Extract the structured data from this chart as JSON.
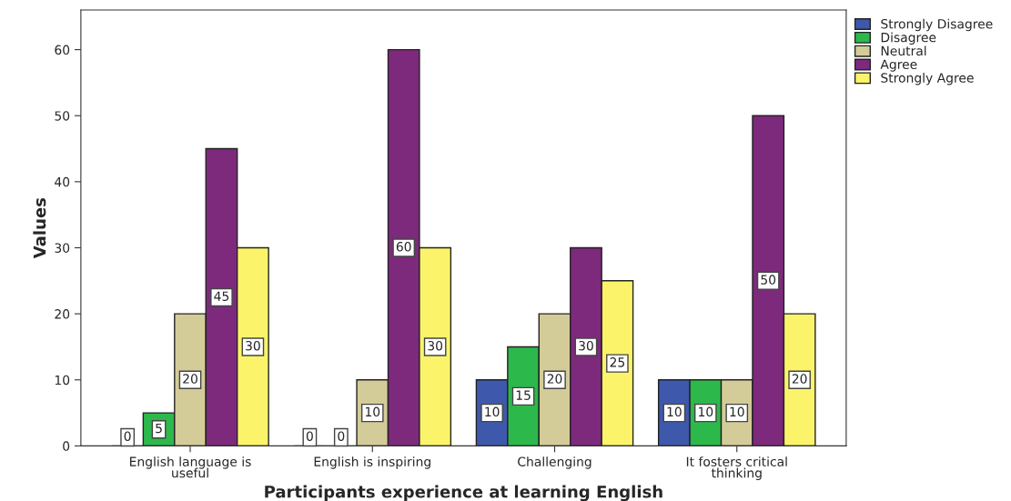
{
  "chart_data": {
    "type": "bar",
    "xlabel": "Participants experience at learning English",
    "ylabel": "Values",
    "categories": [
      "English language is useful",
      "English is inspiring",
      "Challenging",
      "It fosters critical thinking"
    ],
    "series": [
      {
        "name": "Strongly Disagree",
        "color": "#3e58ac",
        "values": [
          0,
          0,
          10,
          10
        ]
      },
      {
        "name": "Disagree",
        "color": "#2db84b",
        "values": [
          5,
          0,
          15,
          10
        ]
      },
      {
        "name": "Neutral",
        "color": "#d4cc98",
        "values": [
          20,
          10,
          20,
          10
        ]
      },
      {
        "name": "Agree",
        "color": "#7d2a7c",
        "values": [
          45,
          60,
          30,
          50
        ]
      },
      {
        "name": "Strongly Agree",
        "color": "#fbf46a",
        "values": [
          30,
          30,
          25,
          20
        ]
      }
    ],
    "ylim": [
      0,
      66
    ],
    "yticks": [
      0,
      10,
      20,
      30,
      40,
      50,
      60
    ],
    "data_labels": true,
    "legend": "top right",
    "grid": false
  }
}
